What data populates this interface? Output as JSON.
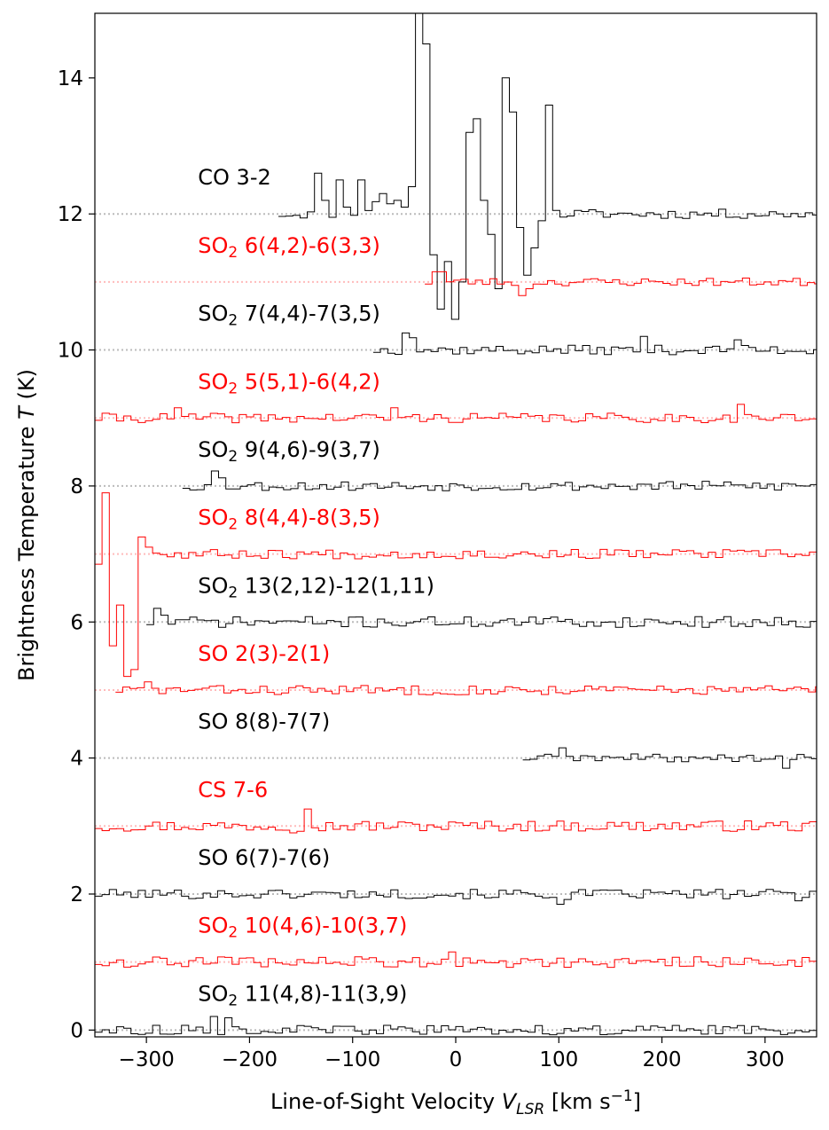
{
  "chart_data": {
    "type": "line",
    "drawstyle": "steps",
    "title": "",
    "xlabel": {
      "prefix": "Line-of-Sight Velocity ",
      "var": "V",
      "sub": "LSR",
      "units_pre": " [km s",
      "units_sup": "−1",
      "units_post": "]"
    },
    "ylabel": {
      "prefix": "Brightness Temperature ",
      "var": "T",
      "suffix": " (K)"
    },
    "xlim": [
      -350,
      350
    ],
    "ylim": [
      -0.1,
      14.95
    ],
    "xticks": [
      -300,
      -200,
      -100,
      0,
      100,
      200,
      300
    ],
    "xtick_labels": [
      "−300",
      "−200",
      "−100",
      "0",
      "100",
      "200",
      "300"
    ],
    "yticks": [
      0,
      2,
      4,
      6,
      8,
      10,
      12,
      14
    ],
    "ytick_labels": [
      "0",
      "2",
      "4",
      "6",
      "8",
      "10",
      "12",
      "14"
    ],
    "grid": false,
    "legend": "none",
    "label_x": -250,
    "channel_width": 7,
    "colors": {
      "black": "#000000",
      "red": "#ff0000",
      "baseline_black": "#bbbbbb",
      "baseline_red": "#ffbbbb"
    },
    "series": [
      {
        "name_main": "CO 3-2",
        "name_sub": "",
        "name_rest": "",
        "offset": 12,
        "color": "black",
        "x_start": -172,
        "x_end": 350,
        "noise": 0.07,
        "seed": 11,
        "features": [
          [
            -138,
            -131,
            12.6
          ],
          [
            -131,
            -124,
            12.2
          ],
          [
            -124,
            -117,
            11.95
          ],
          [
            -117,
            -110,
            12.5
          ],
          [
            -110,
            -103,
            12.1
          ],
          [
            -103,
            -96,
            11.98
          ],
          [
            -96,
            -89,
            12.5
          ],
          [
            -89,
            -82,
            12.05
          ],
          [
            -82,
            -75,
            12.18
          ],
          [
            -75,
            -68,
            12.3
          ],
          [
            -68,
            -61,
            12.15
          ],
          [
            -61,
            -54,
            12.2
          ],
          [
            -54,
            -47,
            12.1
          ],
          [
            -47,
            -42,
            12.4
          ],
          [
            -42,
            -37,
            14.0
          ],
          [
            -37,
            -33,
            16.0
          ],
          [
            -33,
            -28,
            14.5
          ],
          [
            -28,
            -23,
            10.7
          ],
          [
            -23,
            -18,
            11.4
          ],
          [
            -18,
            -13,
            10.6
          ],
          [
            -13,
            -8,
            11.8
          ],
          [
            -8,
            -3,
            11.3
          ],
          [
            -3,
            2,
            10.45
          ],
          [
            2,
            7,
            11.0
          ],
          [
            7,
            12,
            12.5
          ],
          [
            12,
            17,
            13.2
          ],
          [
            17,
            22,
            13.4
          ],
          [
            22,
            27,
            13.6
          ],
          [
            27,
            32,
            12.2
          ],
          [
            32,
            37,
            11.7
          ],
          [
            37,
            42,
            10.9
          ],
          [
            42,
            47,
            12.2
          ],
          [
            47,
            52,
            14.0
          ],
          [
            52,
            57,
            13.5
          ],
          [
            57,
            62,
            12.5
          ],
          [
            62,
            67,
            11.8
          ],
          [
            67,
            72,
            11.1
          ],
          [
            72,
            77,
            11.5
          ],
          [
            77,
            82,
            11.5
          ],
          [
            82,
            87,
            11.9
          ],
          [
            87,
            92,
            13.6
          ],
          [
            92,
            97,
            12.55
          ]
        ]
      },
      {
        "name_main": "SO",
        "name_sub": "2",
        "name_rest": " 6(4,2)-6(3,3)",
        "offset": 11,
        "color": "red",
        "x_start": -30,
        "x_end": 350,
        "noise": 0.06,
        "seed": 23,
        "features": [
          [
            -20,
            -10,
            11.15
          ],
          [
            60,
            68,
            10.8
          ],
          [
            68,
            76,
            10.9
          ]
        ]
      },
      {
        "name_main": "SO",
        "name_sub": "2",
        "name_rest": " 7(4,4)-7(3,5)",
        "offset": 10,
        "color": "black",
        "x_start": -80,
        "x_end": 350,
        "noise": 0.07,
        "seed": 37,
        "features": [
          [
            -50,
            -43,
            10.25
          ],
          [
            -43,
            -36,
            10.18
          ],
          [
            180,
            187,
            10.2
          ],
          [
            270,
            277,
            10.15
          ]
        ]
      },
      {
        "name_main": "SO",
        "name_sub": "2",
        "name_rest": " 5(5,1)-6(4,2)",
        "offset": 9,
        "color": "red",
        "x_start": -350,
        "x_end": 350,
        "noise": 0.07,
        "seed": 41,
        "features": [
          [
            -270,
            -263,
            9.15
          ],
          [
            -60,
            -53,
            9.15
          ],
          [
            275,
            282,
            9.2
          ]
        ]
      },
      {
        "name_main": "SO",
        "name_sub": "2",
        "name_rest": " 9(4,6)-9(3,7)",
        "offset": 8,
        "color": "black",
        "x_start": -265,
        "x_end": 350,
        "noise": 0.07,
        "seed": 53,
        "features": [
          [
            -235,
            -228,
            8.22
          ],
          [
            -228,
            -221,
            8.12
          ]
        ]
      },
      {
        "name_main": "SO",
        "name_sub": "2",
        "name_rest": " 8(4,4)-8(3,5)",
        "offset": 7,
        "color": "red",
        "x_start": -350,
        "x_end": 350,
        "noise": 0.07,
        "seed": 67,
        "features": [
          [
            -350,
            -343,
            6.85
          ],
          [
            -343,
            -337,
            7.9
          ],
          [
            -337,
            -331,
            5.65
          ],
          [
            -331,
            -325,
            6.25
          ],
          [
            -325,
            -319,
            5.0
          ],
          [
            -319,
            -313,
            5.2
          ],
          [
            -313,
            -307,
            5.3
          ],
          [
            -307,
            -300,
            7.25
          ],
          [
            -300,
            -295,
            7.1
          ]
        ]
      },
      {
        "name_main": "SO",
        "name_sub": "2",
        "name_rest": " 13(2,12)-12(1,11)",
        "offset": 6,
        "color": "black",
        "x_start": -300,
        "x_end": 350,
        "noise": 0.08,
        "seed": 71,
        "features": [
          [
            -295,
            -288,
            6.2
          ],
          [
            -288,
            -281,
            6.1
          ]
        ]
      },
      {
        "name_main": "SO 2(3)-2(1)",
        "name_sub": "",
        "name_rest": "",
        "offset": 5,
        "color": "red",
        "x_start": -330,
        "x_end": 350,
        "noise": 0.07,
        "seed": 83,
        "features": [
          [
            -300,
            -293,
            5.12
          ]
        ]
      },
      {
        "name_main": "SO 8(8)-7(7)",
        "name_sub": "",
        "name_rest": "",
        "offset": 4,
        "color": "black",
        "x_start": 65,
        "x_end": 350,
        "noise": 0.06,
        "seed": 89,
        "features": [
          [
            100,
            107,
            4.15
          ],
          [
            320,
            327,
            3.85
          ]
        ]
      },
      {
        "name_main": "CS 7-6",
        "name_sub": "",
        "name_rest": "",
        "offset": 3,
        "color": "red",
        "x_start": -350,
        "x_end": 350,
        "noise": 0.08,
        "seed": 97,
        "features": [
          [
            -150,
            -143,
            3.25
          ],
          [
            -160,
            -153,
            2.9
          ]
        ]
      },
      {
        "name_main": "SO 6(7)-7(6)",
        "name_sub": "",
        "name_rest": "",
        "offset": 2,
        "color": "black",
        "x_start": -350,
        "x_end": 350,
        "noise": 0.07,
        "seed": 101,
        "features": [
          [
            95,
            102,
            1.85
          ],
          [
            102,
            109,
            1.92
          ],
          [
            330,
            337,
            1.9
          ]
        ]
      },
      {
        "name_main": "SO",
        "name_sub": "2",
        "name_rest": " 10(4,6)-10(3,7)",
        "offset": 1,
        "color": "red",
        "x_start": -350,
        "x_end": 350,
        "noise": 0.08,
        "seed": 109,
        "features": [
          [
            -10,
            -3,
            1.15
          ]
        ]
      },
      {
        "name_main": "SO",
        "name_sub": "2",
        "name_rest": " 11(4,8)-11(3,9)",
        "offset": 0,
        "color": "black",
        "x_start": -350,
        "x_end": 350,
        "noise": 0.07,
        "seed": 113,
        "features": [
          [
            -240,
            -233,
            0.2
          ],
          [
            -225,
            -218,
            0.18
          ]
        ]
      }
    ]
  }
}
